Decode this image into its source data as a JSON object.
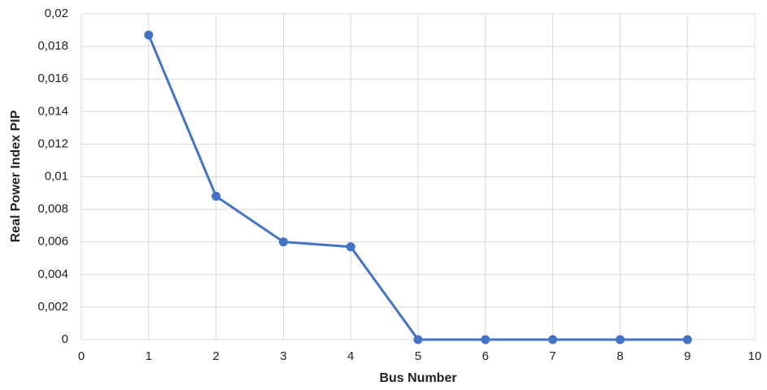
{
  "chart_data": {
    "type": "line",
    "x_label": "Bus Number",
    "y_label": "Real Power Index PIP",
    "x": [
      1,
      2,
      3,
      4,
      5,
      6,
      7,
      8,
      9
    ],
    "series": [
      {
        "color": "#4472c4",
        "values": [
          0.0187,
          0.0088,
          0.006,
          0.0057,
          0,
          0,
          0,
          0,
          0
        ]
      }
    ],
    "xlim": [
      0,
      10
    ],
    "xticks": [
      0,
      1,
      2,
      3,
      4,
      5,
      6,
      7,
      8,
      9,
      10
    ],
    "ylim": [
      0,
      0.02
    ],
    "yticks": [
      0,
      {
        "value": 0.002,
        "label": "0,002"
      },
      {
        "value": 0.004,
        "label": "0,004"
      },
      {
        "value": 0.006,
        "label": "0,006"
      },
      {
        "value": 0.008,
        "label": "0,008"
      },
      {
        "value": 0.01,
        "label": "0,01"
      },
      {
        "value": 0.012,
        "label": "0,012"
      },
      {
        "value": 0.014,
        "label": "0,014"
      },
      {
        "value": 0.016,
        "label": "0,016"
      },
      {
        "value": 0.018,
        "label": "0,018"
      },
      {
        "value": 0.02,
        "label": "0,02"
      }
    ],
    "grid": true
  }
}
